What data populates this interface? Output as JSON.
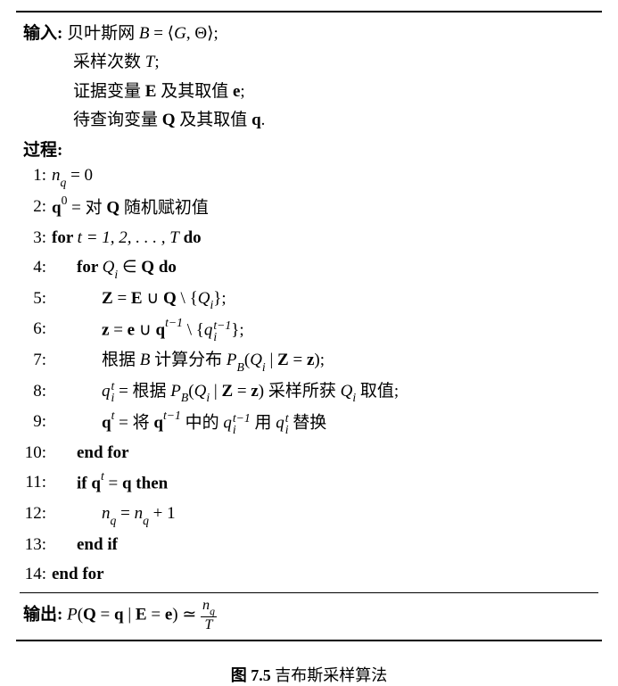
{
  "header": {
    "input_label": "输入:",
    "process_label": "过程:",
    "output_label": "输出:"
  },
  "inputs": {
    "line1_prefix": " 贝叶斯网 ",
    "line2": "采样次数 ",
    "line2_var": "T",
    "line2_suffix": ";",
    "line3": "证据变量 ",
    "line3_mid": " 及其取值 ",
    "line3_suffix": ";",
    "line4": "待查询变量 ",
    "line4_mid": " 及其取值 ",
    "line4_suffix": "."
  },
  "steps": {
    "s1_num": "1:",
    "s2_num": "2:",
    "s2_text": " = 对 ",
    "s2_suffix": " 随机赋初值",
    "s3_num": "3:",
    "s3_for": "for ",
    "s3_range": "t = 1, 2, . . . , T",
    "s3_do": "   do",
    "s4_num": "4:",
    "s4_for": "for ",
    "s4_do": "   do",
    "s5_num": "5:",
    "s6_num": "6:",
    "s7_num": "7:",
    "s7_text1": "根据 ",
    "s7_text2": " 计算分布 ",
    "s8_num": "8:",
    "s8_text1": " = 根据 ",
    "s8_text2": " 采样所获 ",
    "s8_text3": " 取值;",
    "s9_num": "9:",
    "s9_text1": " = 将 ",
    "s9_text2": " 中的 ",
    "s9_text3": " 用 ",
    "s9_text4": " 替换",
    "s10_num": "10:",
    "s10_text": "end for",
    "s11_num": "11:",
    "s11_if": "if ",
    "s11_then": " then",
    "s12_num": "12:",
    "s13_num": "13:",
    "s13_text": "end if",
    "s14_num": "14:",
    "s14_text": "end for"
  },
  "caption": {
    "fig_label": "图 7.5",
    "title": "   吉布斯采样算法"
  }
}
